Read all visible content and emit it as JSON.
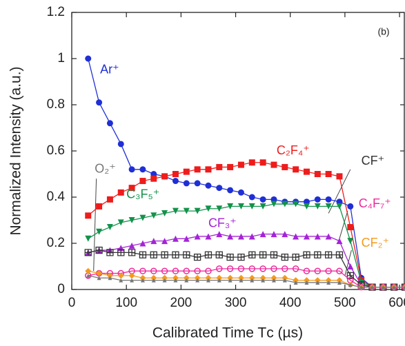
{
  "chart_data": {
    "type": "line",
    "annotation": "(b)",
    "xlabel": "Calibrated Time Tᴄ (µs)",
    "ylabel": "Normalized Intensity (a.u.)",
    "xlim": [
      0,
      610
    ],
    "ylim": [
      0,
      1.2
    ],
    "xticks": [
      0,
      100,
      200,
      300,
      400,
      500,
      600
    ],
    "yticks": [
      0,
      0.2,
      0.4,
      0.6,
      0.8,
      1,
      1.2
    ],
    "x": [
      30,
      50,
      70,
      90,
      110,
      130,
      150,
      170,
      190,
      210,
      230,
      250,
      270,
      290,
      310,
      330,
      350,
      370,
      390,
      410,
      430,
      450,
      470,
      490,
      510,
      530,
      550,
      570,
      590,
      610,
      630
    ],
    "series": [
      {
        "name": "Ar⁺",
        "color": "#1f2fd6",
        "marker": "circle",
        "values": [
          1.0,
          0.81,
          0.72,
          0.63,
          0.52,
          0.52,
          0.5,
          0.49,
          0.47,
          0.46,
          0.46,
          0.45,
          0.44,
          0.43,
          0.42,
          0.4,
          0.39,
          0.39,
          0.38,
          0.38,
          0.38,
          0.39,
          0.39,
          0.38,
          0.36,
          0.05,
          0.01,
          0.01,
          0.01,
          0.01,
          0.01
        ]
      },
      {
        "name": "C₂F₄⁺",
        "color": "#ee1c1c",
        "marker": "square",
        "values": [
          0.32,
          0.36,
          0.39,
          0.42,
          0.44,
          0.47,
          0.48,
          0.49,
          0.5,
          0.51,
          0.52,
          0.52,
          0.53,
          0.53,
          0.54,
          0.55,
          0.55,
          0.54,
          0.53,
          0.52,
          0.51,
          0.5,
          0.5,
          0.49,
          0.27,
          0.04,
          0.01,
          0.01,
          0.01,
          0.01,
          0.01
        ]
      },
      {
        "name": "C₃F₅⁺",
        "color": "#12924a",
        "marker": "tri-down",
        "values": [
          0.22,
          0.25,
          0.27,
          0.29,
          0.3,
          0.31,
          0.32,
          0.33,
          0.34,
          0.34,
          0.34,
          0.35,
          0.35,
          0.36,
          0.36,
          0.36,
          0.36,
          0.37,
          0.37,
          0.37,
          0.36,
          0.36,
          0.36,
          0.36,
          0.21,
          0.03,
          0.01,
          0.01,
          0.01,
          0.01,
          0.01
        ]
      },
      {
        "name": "CF₃⁺",
        "color": "#a424d6",
        "marker": "tri-up",
        "values": [
          0.16,
          0.17,
          0.17,
          0.18,
          0.19,
          0.2,
          0.21,
          0.21,
          0.22,
          0.22,
          0.23,
          0.23,
          0.24,
          0.23,
          0.23,
          0.23,
          0.24,
          0.24,
          0.24,
          0.23,
          0.23,
          0.23,
          0.23,
          0.21,
          0.1,
          0.02,
          0.01,
          0.01,
          0.01,
          0.01,
          0.01
        ]
      },
      {
        "name": "CF⁺",
        "color": "#333333",
        "marker": "square-plus",
        "values": [
          0.16,
          0.17,
          0.16,
          0.16,
          0.16,
          0.15,
          0.15,
          0.15,
          0.15,
          0.15,
          0.14,
          0.15,
          0.15,
          0.14,
          0.14,
          0.15,
          0.15,
          0.15,
          0.14,
          0.14,
          0.15,
          0.15,
          0.15,
          0.15,
          0.06,
          0.02,
          0.01,
          0.01,
          0.01,
          0.01,
          0.01
        ]
      },
      {
        "name": "C₄F₇⁺",
        "color": "#ec2a9c",
        "marker": "open-circle",
        "values": [
          0.06,
          0.07,
          0.07,
          0.07,
          0.08,
          0.08,
          0.08,
          0.08,
          0.08,
          0.08,
          0.08,
          0.08,
          0.09,
          0.09,
          0.09,
          0.09,
          0.09,
          0.09,
          0.09,
          0.09,
          0.08,
          0.08,
          0.08,
          0.08,
          0.04,
          0.01,
          0.01,
          0.01,
          0.01,
          0.01,
          0.01
        ]
      },
      {
        "name": "CF₂⁺",
        "color": "#f39a1e",
        "marker": "diamond",
        "values": [
          0.08,
          0.07,
          0.06,
          0.06,
          0.06,
          0.05,
          0.05,
          0.05,
          0.05,
          0.05,
          0.05,
          0.05,
          0.05,
          0.05,
          0.05,
          0.05,
          0.05,
          0.05,
          0.05,
          0.04,
          0.04,
          0.04,
          0.04,
          0.04,
          0.02,
          0.01,
          0.01,
          0.01,
          0.01,
          0.01,
          0.01
        ]
      },
      {
        "name": "O₂⁺",
        "color": "#777777",
        "marker": "small-tri",
        "values": [
          0.06,
          0.05,
          0.05,
          0.04,
          0.04,
          0.04,
          0.04,
          0.04,
          0.04,
          0.04,
          0.04,
          0.04,
          0.04,
          0.04,
          0.04,
          0.04,
          0.04,
          0.04,
          0.04,
          0.03,
          0.03,
          0.03,
          0.03,
          0.03,
          0.02,
          0.01,
          0.01,
          0.01,
          0.01,
          0.01,
          0.01
        ]
      }
    ]
  }
}
